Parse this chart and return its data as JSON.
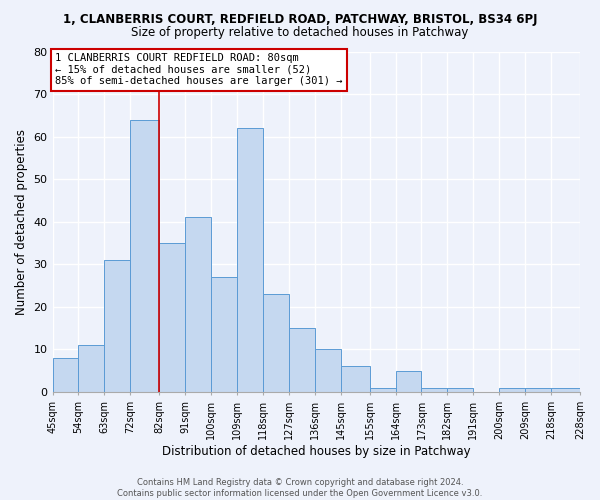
{
  "title_line1": "1, CLANBERRIS COURT, REDFIELD ROAD, PATCHWAY, BRISTOL, BS34 6PJ",
  "title_line2": "Size of property relative to detached houses in Patchway",
  "xlabel": "Distribution of detached houses by size in Patchway",
  "ylabel": "Number of detached properties",
  "bin_edges": [
    45,
    54,
    63,
    72,
    82,
    91,
    100,
    109,
    118,
    127,
    136,
    145,
    155,
    164,
    173,
    182,
    191,
    200,
    209,
    218,
    228
  ],
  "bar_heights": [
    8,
    11,
    31,
    64,
    35,
    41,
    27,
    62,
    23,
    15,
    10,
    6,
    1,
    5,
    1,
    1,
    0,
    1,
    1,
    1
  ],
  "bar_facecolor": "#c5d8f0",
  "bar_edgecolor": "#5b9bd5",
  "background_color": "#eef2fb",
  "grid_color": "#ffffff",
  "vline_x": 82,
  "vline_color": "#cc0000",
  "ylim": [
    0,
    80
  ],
  "yticks": [
    0,
    10,
    20,
    30,
    40,
    50,
    60,
    70,
    80
  ],
  "annotation_text": "1 CLANBERRIS COURT REDFIELD ROAD: 80sqm\n← 15% of detached houses are smaller (52)\n85% of semi-detached houses are larger (301) →",
  "annotation_box_color": "#cc0000",
  "footer_line1": "Contains HM Land Registry data © Crown copyright and database right 2024.",
  "footer_line2": "Contains public sector information licensed under the Open Government Licence v3.0.",
  "tick_labels": [
    "45sqm",
    "54sqm",
    "63sqm",
    "72sqm",
    "82sqm",
    "91sqm",
    "100sqm",
    "109sqm",
    "118sqm",
    "127sqm",
    "136sqm",
    "145sqm",
    "155sqm",
    "164sqm",
    "173sqm",
    "182sqm",
    "191sqm",
    "200sqm",
    "209sqm",
    "218sqm",
    "228sqm"
  ]
}
